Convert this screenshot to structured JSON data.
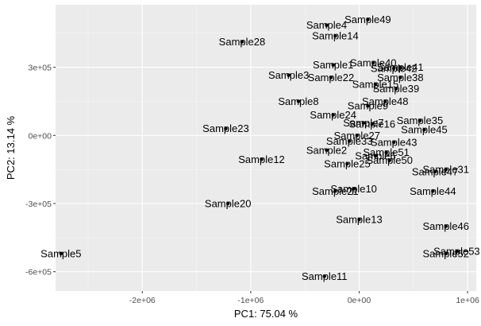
{
  "chart_data": {
    "type": "scatter",
    "xlabel": "PC1: 75.04 %",
    "ylabel": "PC2: 13.14 %",
    "xlim": [
      -2800000.0,
      1080000.0
    ],
    "ylim": [
      -685000.0,
      575000.0
    ],
    "x_ticks": [
      {
        "value": -2000000,
        "label": "-2e+06"
      },
      {
        "value": -1000000,
        "label": "-1e+06"
      },
      {
        "value": 0,
        "label": "0e+00"
      },
      {
        "value": 1000000,
        "label": "1e+06"
      }
    ],
    "y_ticks": [
      {
        "value": 300000,
        "label": "3e+05"
      },
      {
        "value": 0,
        "label": "0e+00"
      },
      {
        "value": -300000,
        "label": "-3e+05"
      },
      {
        "value": -600000,
        "label": "-6e+05"
      }
    ],
    "grid": true,
    "background": "#ebebeb",
    "point_color": "#000000",
    "points": [
      {
        "label": "Sample49",
        "x": 80000,
        "y": 510000
      },
      {
        "label": "Sample4",
        "x": -300000,
        "y": 485000
      },
      {
        "label": "Sample14",
        "x": -220000,
        "y": 438000
      },
      {
        "label": "Sample28",
        "x": -1080000,
        "y": 412000
      },
      {
        "label": "Sample40",
        "x": 130000,
        "y": 320000
      },
      {
        "label": "Sample1",
        "x": -240000,
        "y": 310000
      },
      {
        "label": "Sample41",
        "x": 380000,
        "y": 300000
      },
      {
        "label": "Sample42",
        "x": 320000,
        "y": 295000
      },
      {
        "label": "Sample3",
        "x": -650000,
        "y": 265000
      },
      {
        "label": "Sample22",
        "x": -260000,
        "y": 255000
      },
      {
        "label": "Sample38",
        "x": 380000,
        "y": 255000
      },
      {
        "label": "Sample15",
        "x": 150000,
        "y": 225000
      },
      {
        "label": "Sample39",
        "x": 340000,
        "y": 205000
      },
      {
        "label": "Sample8",
        "x": -560000,
        "y": 150000
      },
      {
        "label": "Sample48",
        "x": 240000,
        "y": 150000
      },
      {
        "label": "Sample9",
        "x": 80000,
        "y": 130000
      },
      {
        "label": "Sample24",
        "x": -240000,
        "y": 90000
      },
      {
        "label": "Sample35",
        "x": 560000,
        "y": 65000
      },
      {
        "label": "Sample16",
        "x": 120000,
        "y": 50000
      },
      {
        "label": "Sample7",
        "x": 40000,
        "y": 55000
      },
      {
        "label": "Sample23",
        "x": -1230000,
        "y": 30000
      },
      {
        "label": "Sample45",
        "x": 600000,
        "y": 25000
      },
      {
        "label": "Sample27",
        "x": -20000,
        "y": 0
      },
      {
        "label": "Sample43",
        "x": 320000,
        "y": -30000
      },
      {
        "label": "Sample33",
        "x": -90000,
        "y": -25000
      },
      {
        "label": "Sample2",
        "x": -300000,
        "y": -65000
      },
      {
        "label": "Sample51",
        "x": 250000,
        "y": -75000
      },
      {
        "label": "Sample6",
        "x": 150000,
        "y": -90000
      },
      {
        "label": "Sample50",
        "x": 280000,
        "y": -110000
      },
      {
        "label": "Sample12",
        "x": -900000,
        "y": -105000
      },
      {
        "label": "Sample25",
        "x": -110000,
        "y": -125000
      },
      {
        "label": "Sample31",
        "x": 800000,
        "y": -150000
      },
      {
        "label": "Sample47",
        "x": 700000,
        "y": -160000
      },
      {
        "label": "Sample10",
        "x": -50000,
        "y": -235000
      },
      {
        "label": "Sample21",
        "x": -220000,
        "y": -245000
      },
      {
        "label": "Sample44",
        "x": 680000,
        "y": -245000
      },
      {
        "label": "Sample20",
        "x": -1210000,
        "y": -300000
      },
      {
        "label": "Sample13",
        "x": 0,
        "y": -370000
      },
      {
        "label": "Sample46",
        "x": 800000,
        "y": -400000
      },
      {
        "label": "Sample5",
        "x": -2750000,
        "y": -520000
      },
      {
        "label": "Sample53",
        "x": 900000,
        "y": -510000
      },
      {
        "label": "Sample52",
        "x": 800000,
        "y": -520000
      },
      {
        "label": "Sample11",
        "x": -320000,
        "y": -620000
      }
    ]
  }
}
